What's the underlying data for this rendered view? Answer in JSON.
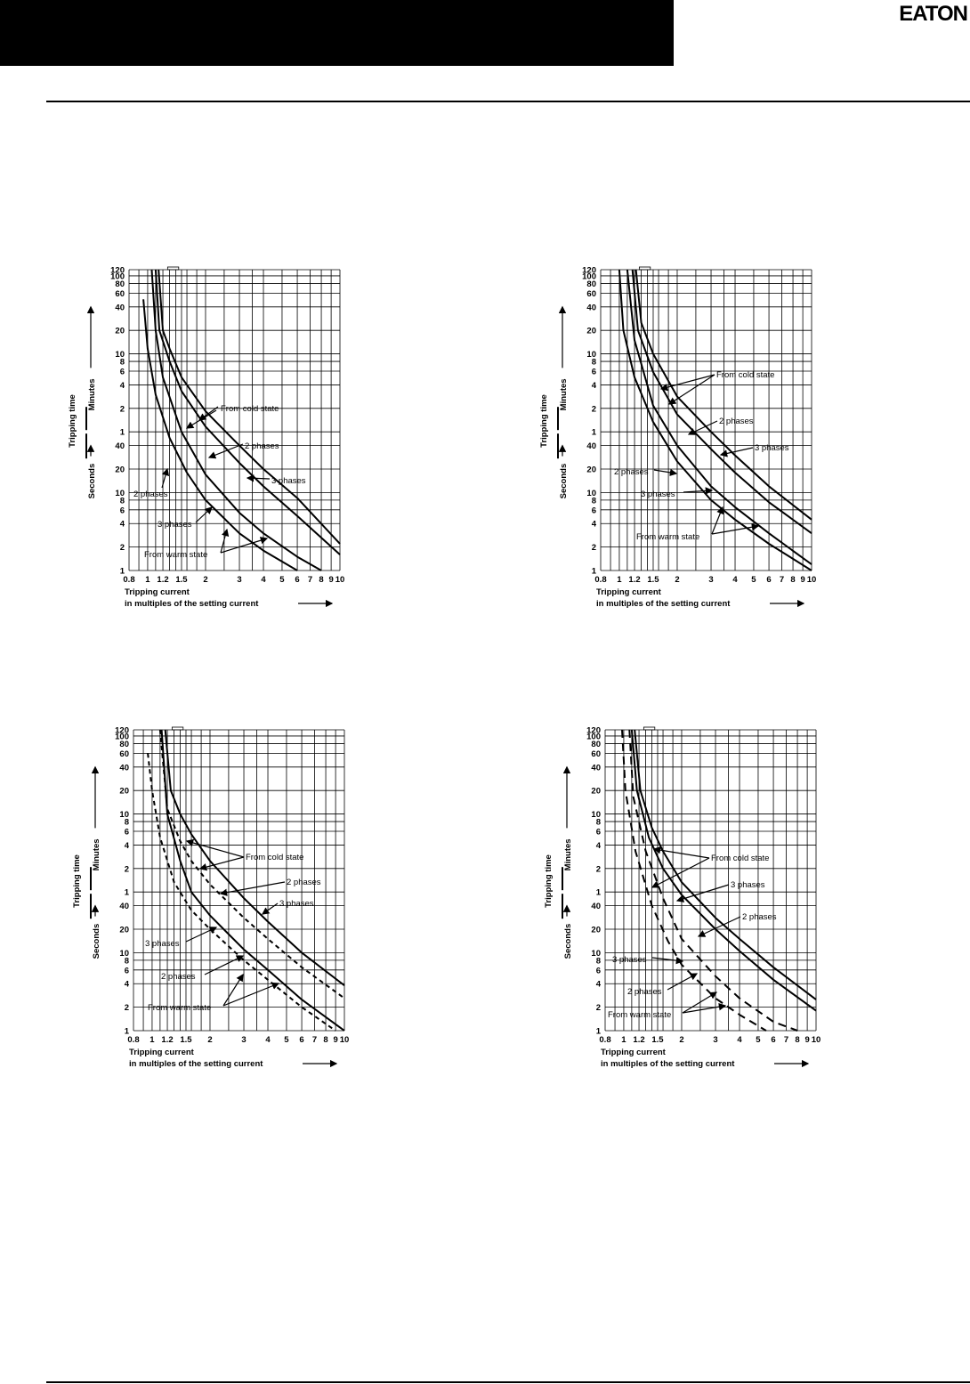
{
  "brand": {
    "logo_text": "EATON",
    "header_color": "#000000"
  },
  "common": {
    "xlabel_line1": "Tripping current",
    "xlabel_line2": "in multiples of the setting current",
    "ylabel_main": "Tripping time",
    "ylabel_minutes": "Minutes",
    "ylabel_seconds": "Seconds"
  },
  "chart_data": [
    {
      "type": "line",
      "x_scale": "log",
      "y_scale": "log",
      "xlim": [
        0.8,
        10
      ],
      "x_ticks": [
        0.8,
        1,
        1.2,
        1.5,
        2,
        3,
        4,
        5,
        6,
        7,
        8,
        9,
        10
      ],
      "y_ticks_minutes": [
        120,
        100,
        80,
        60,
        40,
        20,
        10,
        8,
        6,
        4,
        2,
        1
      ],
      "y_ticks_seconds": [
        40,
        20,
        10,
        8,
        6,
        4,
        2,
        1
      ],
      "grid": true,
      "series": [
        {
          "name": "From cold state",
          "style": "solid",
          "x": [
            1.14,
            1.2,
            1.3,
            1.5,
            2,
            3,
            4,
            6,
            10
          ],
          "y_seconds": [
            7200,
            1200,
            700,
            300,
            110,
            40,
            20,
            8.5,
            2.2
          ]
        },
        {
          "name": "From cold state",
          "style": "solid",
          "x": [
            1.1,
            1.15,
            1.3,
            1.5,
            2,
            3,
            4,
            6,
            10
          ],
          "y_seconds": [
            7200,
            1200,
            480,
            200,
            70,
            24,
            12,
            5,
            1.6
          ]
        },
        {
          "name": "From warm state",
          "style": "solid",
          "x": [
            1.05,
            1.1,
            1.2,
            1.5,
            2,
            3,
            4,
            6,
            8
          ],
          "y_seconds": [
            7200,
            1200,
            300,
            60,
            17,
            5.5,
            3,
            1.5,
            1
          ]
        },
        {
          "name": "From warm state",
          "style": "solid",
          "x": [
            0.95,
            1,
            1.1,
            1.3,
            1.6,
            2,
            3,
            4,
            6
          ],
          "y_seconds": [
            3000,
            700,
            180,
            50,
            18,
            8,
            3,
            1.8,
            1
          ]
        }
      ],
      "annotations": [
        "From cold state",
        "2 phases",
        "3 phases",
        "2 phases",
        "3 phases",
        "From warm state"
      ]
    },
    {
      "type": "line",
      "x_scale": "log",
      "y_scale": "log",
      "xlim": [
        0.8,
        10
      ],
      "x_ticks": [
        0.8,
        1,
        1.2,
        1.5,
        2,
        3,
        4,
        5,
        6,
        7,
        8,
        9,
        10
      ],
      "y_ticks_minutes": [
        120,
        100,
        80,
        60,
        40,
        20,
        10,
        8,
        6,
        4,
        2,
        1
      ],
      "y_ticks_seconds": [
        40,
        20,
        10,
        8,
        6,
        4,
        2,
        1
      ],
      "grid": true,
      "series": [
        {
          "name": "From cold state",
          "style": "solid",
          "x": [
            1.22,
            1.3,
            1.5,
            2,
            3,
            4,
            6,
            10
          ],
          "y_seconds": [
            7200,
            1500,
            600,
            170,
            60,
            30,
            12,
            4.5
          ]
        },
        {
          "name": "From cold state",
          "style": "solid",
          "x": [
            1.17,
            1.25,
            1.5,
            2,
            3,
            4,
            6,
            10
          ],
          "y_seconds": [
            7200,
            1200,
            350,
            100,
            36,
            18,
            7.5,
            3
          ]
        },
        {
          "name": "From warm state",
          "style": "solid",
          "x": [
            1.1,
            1.2,
            1.5,
            2,
            3,
            4,
            6,
            10
          ],
          "y_seconds": [
            7200,
            900,
            130,
            40,
            12,
            6.5,
            3,
            1.2
          ]
        },
        {
          "name": "From warm state",
          "style": "solid",
          "x": [
            1,
            1.05,
            1.2,
            1.5,
            2,
            3,
            4,
            6,
            10
          ],
          "y_seconds": [
            7200,
            1200,
            300,
            80,
            25,
            8,
            4.5,
            2.2,
            1
          ]
        }
      ],
      "annotations": [
        "From cold state",
        "2 phases",
        "3 phases",
        "2 phases",
        "3 phases",
        "From warm state"
      ]
    },
    {
      "type": "line",
      "x_scale": "log",
      "y_scale": "log",
      "xlim": [
        0.8,
        10
      ],
      "x_ticks": [
        0.8,
        1,
        1.2,
        1.5,
        2,
        3,
        4,
        5,
        6,
        7,
        8,
        9,
        10
      ],
      "y_ticks_minutes": [
        120,
        100,
        80,
        60,
        40,
        20,
        10,
        8,
        6,
        4,
        2,
        1
      ],
      "y_ticks_seconds": [
        40,
        20,
        10,
        8,
        6,
        4,
        2,
        1
      ],
      "grid": true,
      "series": [
        {
          "name": "From cold state",
          "style": "solid",
          "x": [
            1.17,
            1.25,
            1.4,
            1.6,
            2,
            3,
            4,
            6,
            10
          ],
          "y_seconds": [
            7200,
            1200,
            600,
            330,
            150,
            50,
            25,
            10,
            3.8
          ]
        },
        {
          "name": "From cold state",
          "style": "dashed",
          "x": [
            1.1,
            1.2,
            1.4,
            1.6,
            2,
            3,
            4,
            6,
            10
          ],
          "y_seconds": [
            7200,
            700,
            270,
            150,
            75,
            28,
            15,
            6.5,
            2.6
          ]
        },
        {
          "name": "From warm state",
          "style": "solid",
          "x": [
            1.12,
            1.2,
            1.4,
            1.6,
            2,
            3,
            4,
            6,
            10
          ],
          "y_seconds": [
            7200,
            600,
            150,
            60,
            30,
            11,
            6,
            2.5,
            1
          ]
        },
        {
          "name": "From warm state",
          "style": "dashed",
          "x": [
            0.95,
            1,
            1.1,
            1.3,
            1.6,
            2,
            3,
            4,
            6,
            9
          ],
          "y_seconds": [
            3600,
            1200,
            300,
            80,
            35,
            20,
            8,
            4.5,
            2,
            1
          ]
        }
      ],
      "annotations": [
        "From cold state",
        "2 phases",
        "3 phases",
        "3 phases",
        "2 phases",
        "From warm state"
      ]
    },
    {
      "type": "line",
      "x_scale": "log",
      "y_scale": "log",
      "xlim": [
        0.8,
        10
      ],
      "x_ticks": [
        0.8,
        1,
        1.2,
        1.5,
        2,
        3,
        4,
        5,
        6,
        7,
        8,
        9,
        10
      ],
      "y_ticks_minutes": [
        120,
        100,
        80,
        60,
        40,
        20,
        10,
        8,
        6,
        4,
        2,
        1
      ],
      "y_ticks_seconds": [
        40,
        20,
        10,
        8,
        6,
        4,
        2,
        1
      ],
      "grid": true,
      "series": [
        {
          "name": "From cold state",
          "style": "solid",
          "x": [
            1.14,
            1.22,
            1.4,
            1.6,
            2,
            3,
            4,
            6,
            10
          ],
          "y_seconds": [
            7200,
            1200,
            400,
            200,
            80,
            28,
            15,
            6.5,
            2.5
          ]
        },
        {
          "name": "From cold state",
          "style": "solid",
          "x": [
            1.1,
            1.17,
            1.35,
            1.6,
            2,
            3,
            4,
            6,
            10
          ],
          "y_seconds": [
            7200,
            1200,
            300,
            120,
            55,
            20,
            10.5,
            4.5,
            1.8
          ]
        },
        {
          "name": "From warm state",
          "style": "dashed",
          "x": [
            1.07,
            1.12,
            1.3,
            1.6,
            2,
            3,
            4,
            6,
            8
          ],
          "y_seconds": [
            7200,
            1000,
            200,
            50,
            15,
            5,
            2.6,
            1.3,
            1
          ]
        },
        {
          "name": "From warm state",
          "style": "dashed",
          "x": [
            0.98,
            1.02,
            1.15,
            1.4,
            1.7,
            2,
            3,
            4,
            5.5
          ],
          "y_seconds": [
            7200,
            1200,
            200,
            40,
            14,
            7,
            2.6,
            1.6,
            1
          ]
        }
      ],
      "annotations": [
        "From cold state",
        "3 phases",
        "2 phases",
        "3 phases",
        "2 phases",
        "From warm state"
      ]
    }
  ]
}
